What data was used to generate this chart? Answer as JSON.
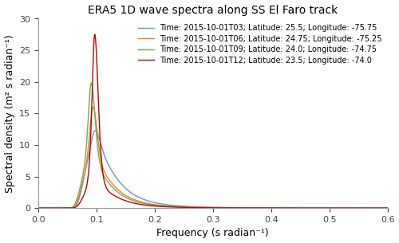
{
  "title": "ERA5 1D wave spectra along SS El Faro track",
  "xlabel": "Frequency (s radian⁻¹)",
  "ylabel": "Spectral density (m² s radian⁻¹)",
  "xlim": [
    0.0,
    0.6
  ],
  "ylim": [
    0.0,
    30
  ],
  "yticks": [
    0,
    5,
    10,
    15,
    20,
    25,
    30
  ],
  "xticks": [
    0.0,
    0.1,
    0.2,
    0.3,
    0.4,
    0.5,
    0.6
  ],
  "series": [
    {
      "label": "Time: 2015-10-01T03; Latitude: 25.5; Longitude: -75.75",
      "color": "#5b9bd5",
      "fp": 0.098,
      "gamma": 1.3,
      "peak": 12.3
    },
    {
      "label": "Time: 2015-10-01T06; Latitude: 24.75; Longitude: -75.25",
      "color": "#ed7d31",
      "fp": 0.094,
      "gamma": 2.2,
      "peak": 16.0
    },
    {
      "label": "Time: 2015-10-01T09; Latitude: 24.0; Longitude: -74.75",
      "color": "#70ad47",
      "fp": 0.091,
      "gamma": 2.8,
      "peak": 19.8
    },
    {
      "label": "Time: 2015-10-01T12; Latitude: 23.5; Longitude: -74.0",
      "color": "#c00000",
      "fp": 0.097,
      "gamma": 7.5,
      "peak": 27.5
    }
  ],
  "legend_loc": "upper right",
  "figsize": [
    5.0,
    3.05
  ],
  "dpi": 100
}
